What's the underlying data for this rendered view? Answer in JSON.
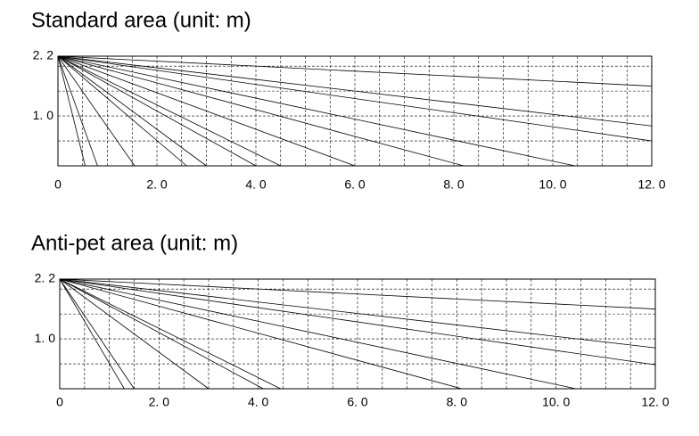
{
  "chart_data": [
    {
      "type": "line",
      "title": "Standard area (unit: m)",
      "color": "#000000",
      "grid": true,
      "xlim": [
        0,
        12
      ],
      "ylim": [
        0,
        2.2
      ],
      "xticks": [
        0,
        {
          "value": 2,
          "label": "2. 0"
        },
        {
          "value": 4,
          "label": "4. 0"
        },
        {
          "value": 6,
          "label": "6. 0"
        },
        {
          "value": 8,
          "label": "8. 0"
        },
        {
          "value": 10,
          "label": "10. 0"
        },
        {
          "value": 12,
          "label": "12. 0"
        }
      ],
      "yticks": [
        {
          "value": 1,
          "label": "1. 0"
        },
        {
          "value": 2.2,
          "label": "2. 2"
        }
      ],
      "series": [
        {
          "x": [
            0,
            12
          ],
          "values": [
            2.2,
            1.6
          ]
        },
        {
          "x": [
            0,
            12
          ],
          "values": [
            2.2,
            0.8
          ]
        },
        {
          "x": [
            0,
            12
          ],
          "values": [
            2.2,
            0.5
          ]
        },
        {
          "x": [
            0,
            10.45
          ],
          "values": [
            2.2,
            0
          ]
        },
        {
          "x": [
            0,
            8.2
          ],
          "values": [
            2.2,
            0
          ]
        },
        {
          "x": [
            0,
            6.0
          ],
          "values": [
            2.2,
            0
          ]
        },
        {
          "x": [
            0,
            4.5
          ],
          "values": [
            2.2,
            0
          ]
        },
        {
          "x": [
            0,
            4.0
          ],
          "values": [
            2.2,
            0
          ]
        },
        {
          "x": [
            0,
            3.0
          ],
          "values": [
            2.2,
            0
          ]
        },
        {
          "x": [
            0,
            2.6
          ],
          "values": [
            2.2,
            0
          ]
        },
        {
          "x": [
            0,
            1.55
          ],
          "values": [
            2.2,
            0
          ]
        },
        {
          "x": [
            0,
            0.8
          ],
          "values": [
            2.2,
            0
          ]
        },
        {
          "x": [
            0,
            0.55
          ],
          "values": [
            2.2,
            0
          ]
        }
      ]
    },
    {
      "type": "line",
      "title": "Anti-pet area (unit: m)",
      "color": "#000000",
      "grid": true,
      "xlim": [
        0,
        12
      ],
      "ylim": [
        0,
        2.2
      ],
      "xticks": [
        0,
        {
          "value": 2,
          "label": "2. 0"
        },
        {
          "value": 4,
          "label": "4. 0"
        },
        {
          "value": 6,
          "label": "6. 0"
        },
        {
          "value": 8,
          "label": "8. 0"
        },
        {
          "value": 10,
          "label": "10. 0"
        },
        {
          "value": 12,
          "label": "12. 0"
        }
      ],
      "yticks": [
        {
          "value": 1,
          "label": "1. 0"
        },
        {
          "value": 2.2,
          "label": "2. 2"
        }
      ],
      "series": [
        {
          "x": [
            0,
            12
          ],
          "values": [
            2.2,
            1.6
          ]
        },
        {
          "x": [
            0,
            12
          ],
          "values": [
            2.2,
            0.82
          ]
        },
        {
          "x": [
            0,
            12
          ],
          "values": [
            2.2,
            0.48
          ]
        },
        {
          "x": [
            0,
            10.4
          ],
          "values": [
            2.2,
            0
          ]
        },
        {
          "x": [
            0,
            8.1
          ],
          "values": [
            2.2,
            0
          ]
        },
        {
          "x": [
            0,
            4.45
          ],
          "values": [
            2.2,
            0
          ]
        },
        {
          "x": [
            0,
            4.1
          ],
          "values": [
            2.2,
            0
          ]
        },
        {
          "x": [
            0,
            3.0
          ],
          "values": [
            2.2,
            0
          ]
        },
        {
          "x": [
            0,
            1.5
          ],
          "values": [
            2.2,
            0
          ]
        },
        {
          "x": [
            0,
            1.3
          ],
          "values": [
            2.2,
            0
          ]
        }
      ]
    }
  ]
}
